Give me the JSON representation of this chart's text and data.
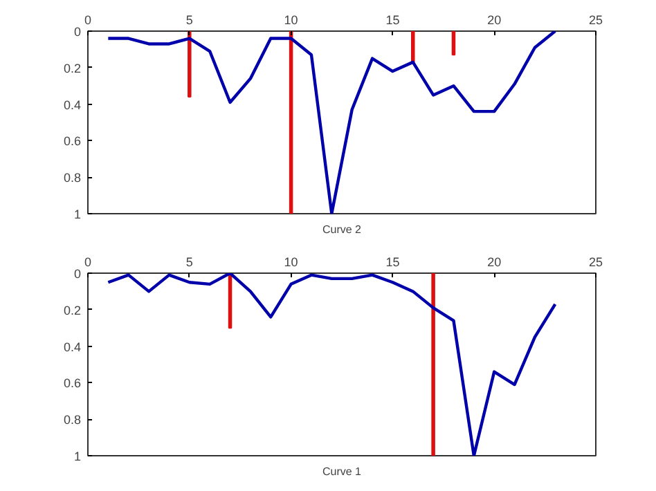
{
  "chart_data": [
    {
      "type": "line",
      "xlabel": "Curve 2",
      "xlim": [
        0,
        25
      ],
      "ylim": [
        1,
        0
      ],
      "xticks": [
        0,
        5,
        10,
        15,
        20,
        25
      ],
      "yticks": [
        0,
        0.2,
        0.4,
        0.6,
        0.8,
        1
      ],
      "grid": false,
      "x": [
        1,
        2,
        3,
        4,
        5,
        6,
        7,
        8,
        9,
        10,
        11,
        12,
        13,
        14,
        15,
        16,
        17,
        18,
        19,
        20,
        21,
        22,
        23
      ],
      "series": [
        {
          "type": "bar",
          "x": [
            5,
            10,
            16,
            18
          ],
          "values": [
            0.36,
            1,
            0.17,
            0.13
          ],
          "color": "#dd1111"
        },
        {
          "color": "#0000aa",
          "values": [
            0.04,
            0.04,
            0.07,
            0.07,
            0.04,
            0.11,
            0.39,
            0.26,
            0.04,
            0.04,
            0.13,
            1,
            0.43,
            0.15,
            0.22,
            0.17,
            0.35,
            0.3,
            0.44,
            0.44,
            0.29,
            0.09,
            0
          ]
        }
      ]
    },
    {
      "type": "line",
      "xlabel": "Curve 1",
      "xlim": [
        0,
        25
      ],
      "ylim": [
        1,
        0
      ],
      "xticks": [
        0,
        5,
        10,
        15,
        20,
        25
      ],
      "yticks": [
        0,
        0.2,
        0.4,
        0.6,
        0.8,
        1
      ],
      "grid": false,
      "x": [
        1,
        2,
        3,
        4,
        5,
        6,
        7,
        8,
        9,
        10,
        11,
        12,
        13,
        14,
        15,
        16,
        17,
        18,
        19,
        20,
        21,
        22,
        23
      ],
      "series": [
        {
          "type": "bar",
          "x": [
            7,
            17
          ],
          "values": [
            0.3,
            1
          ],
          "color": "#dd1111"
        },
        {
          "color": "#0000aa",
          "values": [
            0.05,
            0.01,
            0.1,
            0.01,
            0.05,
            0.06,
            0,
            0.1,
            0.24,
            0.06,
            0.01,
            0.03,
            0.03,
            0.01,
            0.05,
            0.1,
            0.19,
            0.26,
            1,
            0.54,
            0.61,
            0.35,
            0.17
          ]
        }
      ]
    }
  ]
}
